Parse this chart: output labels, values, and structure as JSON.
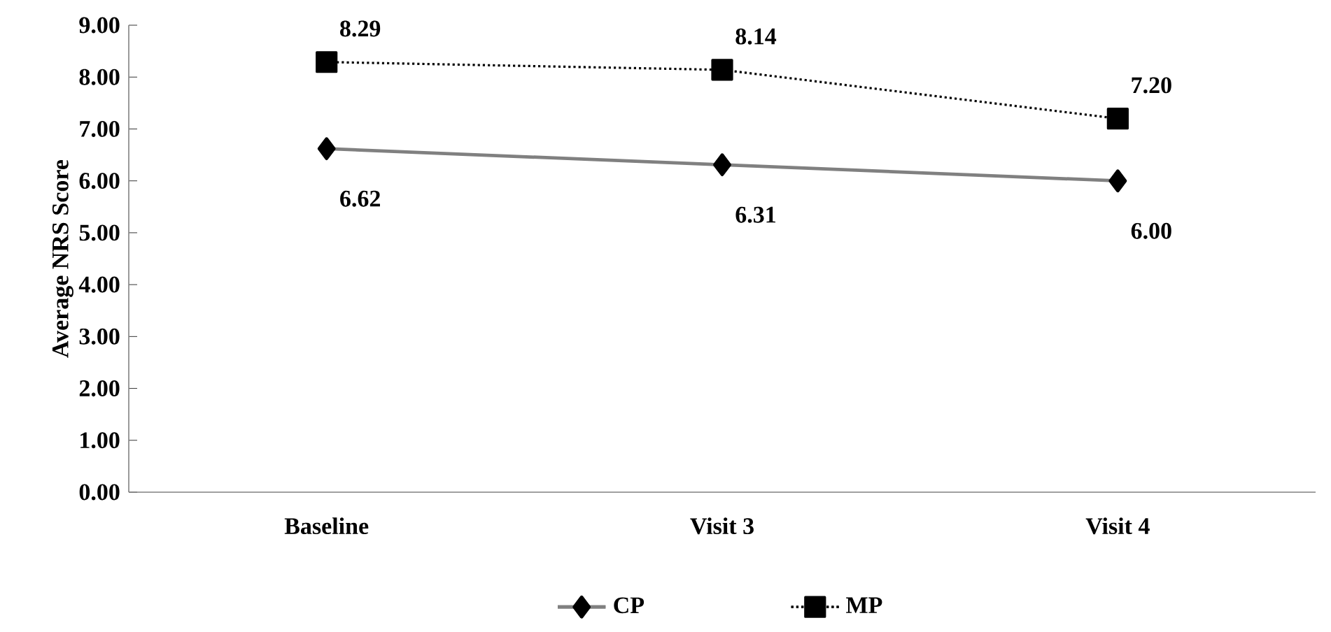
{
  "chart_data": {
    "type": "line",
    "ylabel": "Average NRS Score",
    "categories": [
      "Baseline",
      "Visit 3",
      "Visit 4"
    ],
    "series": [
      {
        "name": "CP",
        "color": "#808080",
        "values": [
          6.62,
          6.31,
          6.0
        ],
        "marker": "diamond",
        "line_style": "solid",
        "value_labels": [
          "6.62",
          "6.31",
          "6.00"
        ]
      },
      {
        "name": "MP",
        "color": "#000000",
        "values": [
          8.29,
          8.14,
          7.2
        ],
        "marker": "square",
        "line_style": "dotted",
        "value_labels": [
          "8.29",
          "8.14",
          "7.20"
        ]
      }
    ],
    "ylim": [
      0,
      9
    ],
    "yticks": [
      {
        "value": 0,
        "label": "0.00"
      },
      {
        "value": 1,
        "label": "1.00"
      },
      {
        "value": 2,
        "label": "2.00"
      },
      {
        "value": 3,
        "label": "3.00"
      },
      {
        "value": 4,
        "label": "4.00"
      },
      {
        "value": 5,
        "label": "5.00"
      },
      {
        "value": 6,
        "label": "6.00"
      },
      {
        "value": 7,
        "label": "7.00"
      },
      {
        "value": 8,
        "label": "8.00"
      },
      {
        "value": 9,
        "label": "9.00"
      }
    ],
    "grid": false,
    "legend": "bottom"
  }
}
